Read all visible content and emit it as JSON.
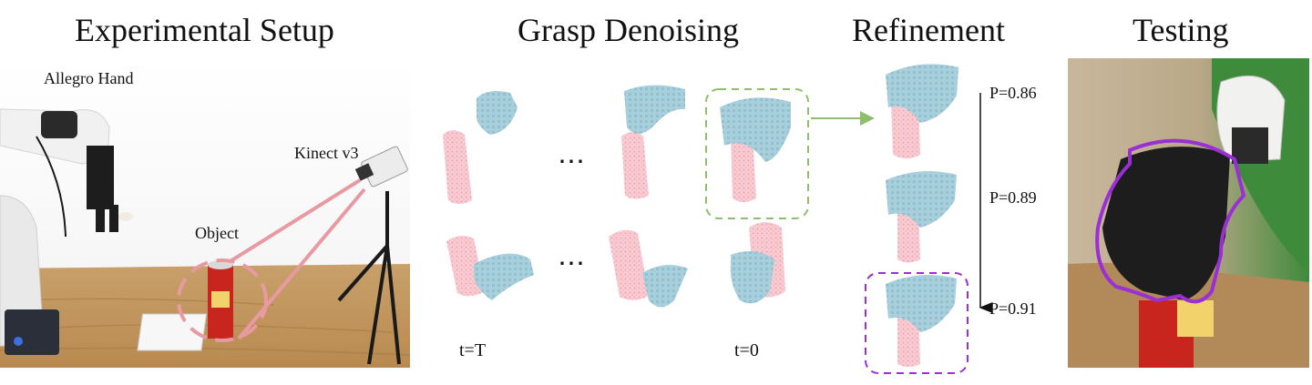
{
  "titles": {
    "setup": "Experimental Setup",
    "denoising": "Grasp Denoising",
    "refinement": "Refinement",
    "testing": "Testing"
  },
  "setup_labels": {
    "hand": "Allegro Hand",
    "camera": "Kinect v3",
    "object": "Object"
  },
  "denoising_labels": {
    "t_start": "t=T",
    "t_end": "t=0",
    "ellipsis": "⋯"
  },
  "refinement": {
    "probabilities": [
      "P=0.86",
      "P=0.89",
      "P=0.91"
    ]
  },
  "colors": {
    "point_cloud": "#f4b5bf",
    "hand_mesh": "#9ec7d6",
    "highlight_green": "#8fbf6e",
    "highlight_purple": "#9b2fd6",
    "table_wood": "#c49a62",
    "can_red": "#c8251f"
  }
}
